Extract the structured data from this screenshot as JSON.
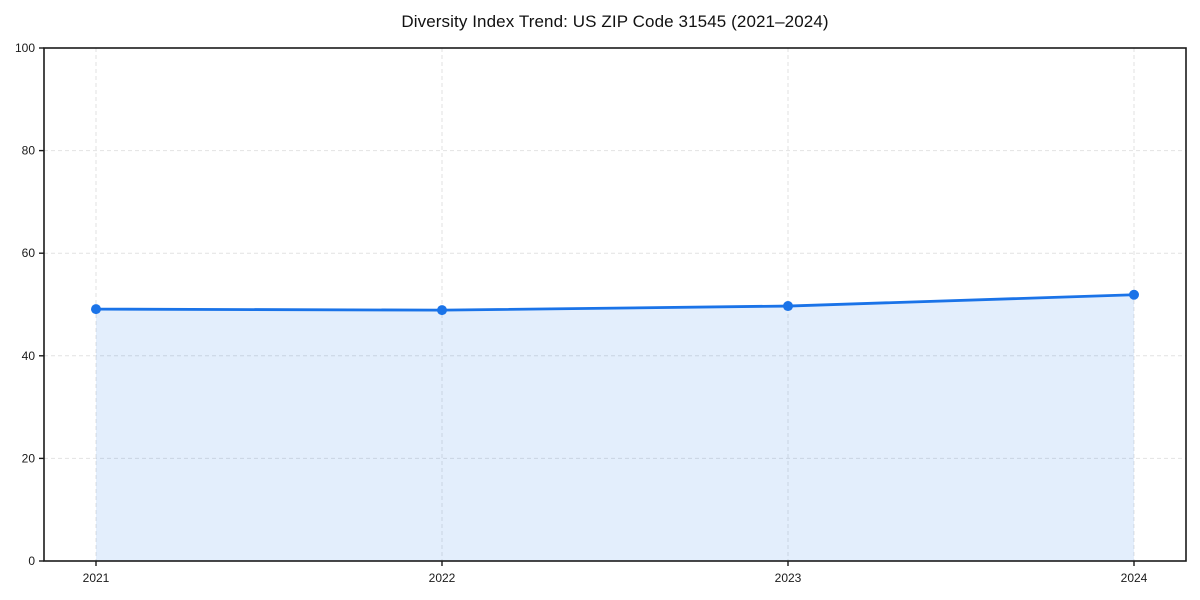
{
  "chart_data": {
    "type": "line",
    "title": "Diversity Index Trend: US ZIP Code 31545 (2021–2024)",
    "x_categories": [
      "2021",
      "2022",
      "2023",
      "2024"
    ],
    "series": [
      {
        "name": "Diversity Index",
        "values": [
          49.1,
          48.9,
          49.7,
          51.9
        ]
      }
    ],
    "xlabel": "",
    "ylabel": "",
    "ylim": [
      0,
      100
    ],
    "yticks": [
      0,
      20,
      40,
      60,
      80,
      100
    ],
    "grid": true,
    "grid_style": "dashed",
    "legend": false,
    "area_fill": true,
    "marker": "circle",
    "colors": {
      "line": "#1a73e8",
      "marker": "#1a73e8",
      "area": "rgba(26,115,232,0.12)",
      "grid": "#e2e2e2",
      "spine": "#1a1a1a",
      "text": "#1a1a1a",
      "background": "#ffffff"
    }
  }
}
